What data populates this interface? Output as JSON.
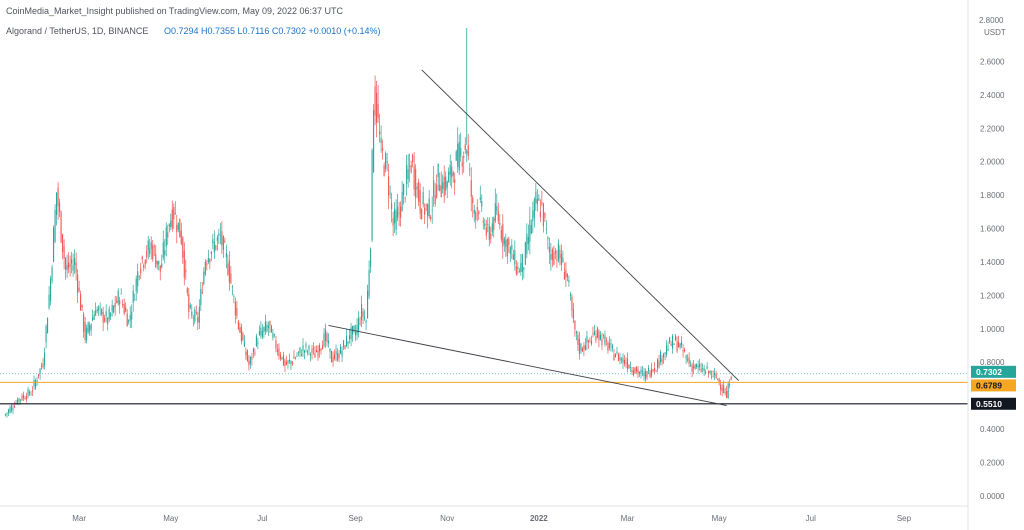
{
  "header": {
    "publish_line": "CoinMedia_Market_Insight published on TradingView.com, May 09, 2022 06:37 UTC",
    "symbol": "Algorand / TetherUS, 1D, BINANCE",
    "ohlc": "O0.7294  H0.7355  L0.7116  C0.7302  +0.0010 (+0.14%)"
  },
  "chart_data": {
    "type": "candlestick",
    "title": "Algorand / TetherUS, 1D, BINANCE",
    "currency_label": "USDT",
    "ylim": [
      0.19,
      2.8
    ],
    "y_ticks": [
      "2.6000",
      "2.4000",
      "2.2000",
      "2.0000",
      "1.8000",
      "1.6000",
      "1.4000",
      "1.2000",
      "1.0000",
      "0.8000",
      "0.4000",
      "0.2000",
      "0.0000"
    ],
    "y_tick_values": [
      2.6,
      2.4,
      2.2,
      2.0,
      1.8,
      1.6,
      1.4,
      1.2,
      1.0,
      0.8,
      0.4,
      0.2,
      0.0
    ],
    "top_axis_label": "2.8000",
    "x_ticks": [
      "Mar",
      "May",
      "Jul",
      "Sep",
      "Nov",
      "2022",
      "Mar",
      "May",
      "Jul",
      "Sep"
    ],
    "x_tick_dates": [
      "2021-03-01",
      "2021-05-01",
      "2021-07-01",
      "2021-09-01",
      "2021-11-01",
      "2022-01-01",
      "2022-03-01",
      "2022-05-01",
      "2022-07-01",
      "2022-09-01"
    ],
    "price_path": [
      [
        "2021-01-10",
        0.48
      ],
      [
        "2021-01-20",
        0.58
      ],
      [
        "2021-01-28",
        0.62
      ],
      [
        "2021-02-05",
        0.8
      ],
      [
        "2021-02-10",
        1.3
      ],
      [
        "2021-02-14",
        1.82
      ],
      [
        "2021-02-20",
        1.35
      ],
      [
        "2021-02-26",
        1.4
      ],
      [
        "2021-03-05",
        0.95
      ],
      [
        "2021-03-12",
        1.12
      ],
      [
        "2021-03-20",
        1.05
      ],
      [
        "2021-03-28",
        1.2
      ],
      [
        "2021-04-03",
        1.04
      ],
      [
        "2021-04-10",
        1.38
      ],
      [
        "2021-04-18",
        1.5
      ],
      [
        "2021-04-24",
        1.35
      ],
      [
        "2021-04-30",
        1.65
      ],
      [
        "2021-05-03",
        1.7
      ],
      [
        "2021-05-08",
        1.55
      ],
      [
        "2021-05-13",
        1.1
      ],
      [
        "2021-05-19",
        1.05
      ],
      [
        "2021-05-24",
        1.42
      ],
      [
        "2021-05-30",
        1.5
      ],
      [
        "2021-06-03",
        1.55
      ],
      [
        "2021-06-08",
        1.38
      ],
      [
        "2021-06-15",
        1.02
      ],
      [
        "2021-06-22",
        0.78
      ],
      [
        "2021-06-28",
        0.95
      ],
      [
        "2021-07-05",
        1.02
      ],
      [
        "2021-07-10",
        0.9
      ],
      [
        "2021-07-16",
        0.78
      ],
      [
        "2021-07-22",
        0.82
      ],
      [
        "2021-07-28",
        0.88
      ],
      [
        "2021-08-05",
        0.85
      ],
      [
        "2021-08-12",
        0.95
      ],
      [
        "2021-08-16",
        0.82
      ],
      [
        "2021-08-22",
        0.86
      ],
      [
        "2021-08-28",
        0.96
      ],
      [
        "2021-09-01",
        0.98
      ],
      [
        "2021-09-05",
        1.1
      ],
      [
        "2021-09-08",
        1.05
      ],
      [
        "2021-09-11",
        1.55
      ],
      [
        "2021-09-13",
        2.4
      ],
      [
        "2021-09-15",
        2.3
      ],
      [
        "2021-09-18",
        2.05
      ],
      [
        "2021-09-22",
        1.95
      ],
      [
        "2021-09-26",
        1.62
      ],
      [
        "2021-09-30",
        1.7
      ],
      [
        "2021-10-04",
        1.85
      ],
      [
        "2021-10-08",
        2.0
      ],
      [
        "2021-10-14",
        1.75
      ],
      [
        "2021-10-20",
        1.7
      ],
      [
        "2021-10-26",
        1.9
      ],
      [
        "2021-10-30",
        1.85
      ],
      [
        "2021-11-05",
        1.95
      ],
      [
        "2021-11-10",
        2.05
      ],
      [
        "2021-11-14",
        2.1
      ],
      [
        "2021-11-18",
        1.7
      ],
      [
        "2021-11-22",
        1.75
      ],
      [
        "2021-11-28",
        1.55
      ],
      [
        "2021-12-04",
        1.7
      ],
      [
        "2021-12-08",
        1.55
      ],
      [
        "2021-12-14",
        1.45
      ],
      [
        "2021-12-18",
        1.35
      ],
      [
        "2021-12-22",
        1.4
      ],
      [
        "2021-12-26",
        1.6
      ],
      [
        "2021-12-30",
        1.75
      ],
      [
        "2022-01-03",
        1.72
      ],
      [
        "2022-01-08",
        1.45
      ],
      [
        "2022-01-14",
        1.45
      ],
      [
        "2022-01-20",
        1.3
      ],
      [
        "2022-01-24",
        1.02
      ],
      [
        "2022-01-28",
        0.88
      ],
      [
        "2022-02-03",
        0.92
      ],
      [
        "2022-02-08",
        0.98
      ],
      [
        "2022-02-14",
        0.92
      ],
      [
        "2022-02-20",
        0.85
      ],
      [
        "2022-02-28",
        0.8
      ],
      [
        "2022-03-06",
        0.75
      ],
      [
        "2022-03-12",
        0.72
      ],
      [
        "2022-03-20",
        0.78
      ],
      [
        "2022-03-28",
        0.9
      ],
      [
        "2022-04-02",
        0.92
      ],
      [
        "2022-04-06",
        0.88
      ],
      [
        "2022-04-12",
        0.78
      ],
      [
        "2022-04-18",
        0.76
      ],
      [
        "2022-04-24",
        0.74
      ],
      [
        "2022-04-30",
        0.7
      ],
      [
        "2022-05-04",
        0.63
      ],
      [
        "2022-05-06",
        0.59
      ],
      [
        "2022-05-08",
        0.7
      ],
      [
        "2022-05-09",
        0.73
      ]
    ],
    "max_wick": {
      "date": "2021-11-14",
      "high": 2.8
    },
    "trendlines": [
      {
        "from": [
          "2021-10-15",
          2.55
        ],
        "to": [
          "2022-05-14",
          0.69
        ]
      },
      {
        "from": [
          "2021-08-14",
          1.02
        ],
        "to": [
          "2022-05-06",
          0.54
        ]
      }
    ],
    "horizontal_levels": [
      {
        "price": 0.6789,
        "label": "0.6789",
        "color": "#f5a623"
      },
      {
        "price": 0.551,
        "label": "0.5510",
        "color": "#131722"
      }
    ],
    "last_price": {
      "price": 0.7302,
      "label": "0.7302",
      "color": "#26a69a"
    },
    "up_color": "#26a69a",
    "down_color": "#ef5350",
    "grid": false
  }
}
